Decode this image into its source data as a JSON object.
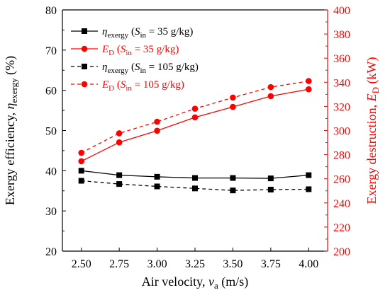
{
  "chart_data": {
    "type": "line",
    "x": [
      2.5,
      2.75,
      3.0,
      3.25,
      3.5,
      3.75,
      4.0
    ],
    "x_tick_labels": [
      "2.50",
      "2.75",
      "3.00",
      "3.25",
      "3.50",
      "3.75",
      "4.00"
    ],
    "xlim": [
      2.375,
      4.125
    ],
    "xlabel": {
      "main": "Air velocity, ",
      "sym": "v",
      "sub": "a",
      "unit": " (m/s)"
    },
    "y_left": {
      "lim": [
        20,
        80
      ],
      "ticks": [
        20,
        30,
        40,
        50,
        60,
        70,
        80
      ],
      "tick_labels": [
        "20",
        "30",
        "40",
        "50",
        "60",
        "70",
        "80"
      ],
      "label": {
        "main": "Exergy efficiency, ",
        "sym": "η",
        "sub": "exergy",
        "unit": " (%)"
      },
      "color": "#000000"
    },
    "y_right": {
      "lim": [
        200,
        400
      ],
      "ticks": [
        200,
        220,
        240,
        260,
        280,
        300,
        320,
        340,
        360,
        380,
        400
      ],
      "tick_labels": [
        "200",
        "220",
        "240",
        "260",
        "280",
        "300",
        "320",
        "340",
        "360",
        "380",
        "400"
      ],
      "label": {
        "main": "Exergy destruction, ",
        "sym": "E",
        "sub": "D",
        "unit": " (kW)"
      },
      "color": "#ff0000"
    },
    "series": [
      {
        "legend": {
          "sym": "η",
          "symsub": "exergy",
          "pre": " (",
          "s": "S",
          "ssub": "in",
          "rest": " = 35 g/kg)"
        },
        "axis": "left",
        "color": "#000000",
        "dash": "solid",
        "marker": "square",
        "values": [
          40.0,
          38.9,
          38.5,
          38.2,
          38.2,
          38.1,
          38.9
        ]
      },
      {
        "legend": {
          "sym": "E",
          "symsub": "D",
          "pre": " (",
          "s": "S",
          "ssub": "in",
          "rest": " = 35 g/kg)"
        },
        "axis": "right",
        "color": "#ff0000",
        "dash": "solid",
        "marker": "circle",
        "values": [
          274.5,
          290.2,
          299.8,
          310.9,
          319.6,
          328.5,
          334.2
        ]
      },
      {
        "legend": {
          "sym": "η",
          "symsub": "exergy",
          "pre": " (",
          "s": "S",
          "ssub": "in",
          "rest": " = 105 g/kg)"
        },
        "axis": "left",
        "color": "#000000",
        "dash": "dashed",
        "marker": "square",
        "values": [
          37.5,
          36.7,
          36.1,
          35.6,
          35.1,
          35.3,
          35.4
        ]
      },
      {
        "legend": {
          "sym": "E",
          "symsub": "D",
          "pre": " (",
          "s": "S",
          "ssub": "in",
          "rest": " = 105 g/kg)"
        },
        "axis": "right",
        "color": "#ff0000",
        "dash": "dashed",
        "marker": "circle",
        "values": [
          281.5,
          297.7,
          307.3,
          318.1,
          327.3,
          336.0,
          341.0
        ]
      }
    ],
    "legend_position": "top-left",
    "grid": false
  }
}
